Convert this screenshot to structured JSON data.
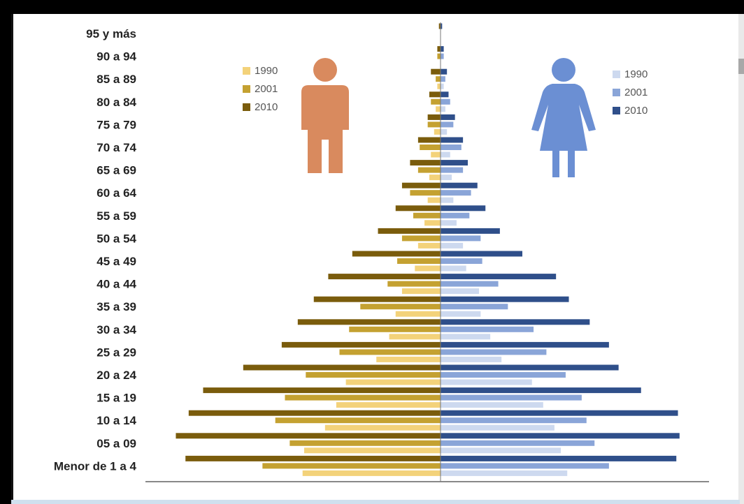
{
  "chart_data": {
    "type": "bar",
    "orientation": "horizontal",
    "layout": "population-pyramid",
    "categories": [
      "95 y más",
      "90 a 94",
      "85 a 89",
      "80 a 84",
      "75 a 79",
      "70 a 74",
      "65 a 69",
      "60 a 64",
      "55 a 59",
      "50 a 54",
      "45 a 49",
      "40 a 44",
      "35 a 39",
      "30 a 34",
      "25 a 29",
      "20 a 24",
      "15 a 19",
      "10 a 14",
      "05 a 09",
      "Menor de 1 a 4"
    ],
    "groups": [
      {
        "side": "left",
        "icon": "male-figure-icon",
        "series": [
          {
            "name": "1990",
            "color": "#f3d27a",
            "values": [
              0,
              0,
              2,
              3,
              4,
              6,
              7,
              8,
              10,
              14,
              16,
              24,
              28,
              32,
              40,
              59,
              65,
              72,
              85,
              86
            ]
          },
          {
            "name": "2001",
            "color": "#c4a131",
            "values": [
              0,
              2,
              3,
              6,
              8,
              13,
              14,
              19,
              17,
              24,
              27,
              33,
              50,
              57,
              63,
              84,
              97,
              103,
              94,
              111
            ]
          },
          {
            "name": "2010",
            "color": "#7a5c0c",
            "values": [
              1,
              2,
              6,
              7,
              8,
              14,
              19,
              24,
              28,
              39,
              55,
              70,
              79,
              89,
              99,
              123,
              148,
              157,
              165,
              159
            ]
          }
        ]
      },
      {
        "side": "right",
        "icon": "female-figure-icon",
        "series": [
          {
            "name": "1990",
            "color": "#cdd9ef",
            "values": [
              0,
              0,
              2,
              3,
              4,
              6,
              7,
              8,
              10,
              14,
              16,
              24,
              25,
              31,
              38,
              57,
              64,
              71,
              75,
              79
            ]
          },
          {
            "name": "2001",
            "color": "#8aa5d8",
            "values": [
              0,
              2,
              3,
              6,
              8,
              13,
              14,
              19,
              18,
              25,
              26,
              36,
              42,
              58,
              66,
              78,
              88,
              91,
              96,
              105
            ]
          },
          {
            "name": "2010",
            "color": "#2f4f8a",
            "values": [
              1,
              2,
              4,
              5,
              9,
              14,
              17,
              23,
              28,
              37,
              51,
              72,
              80,
              93,
              105,
              111,
              125,
              148,
              149,
              147
            ]
          }
        ]
      }
    ],
    "xlim": [
      -170,
      170
    ],
    "grid": false,
    "legend_position": "top, one per side"
  }
}
